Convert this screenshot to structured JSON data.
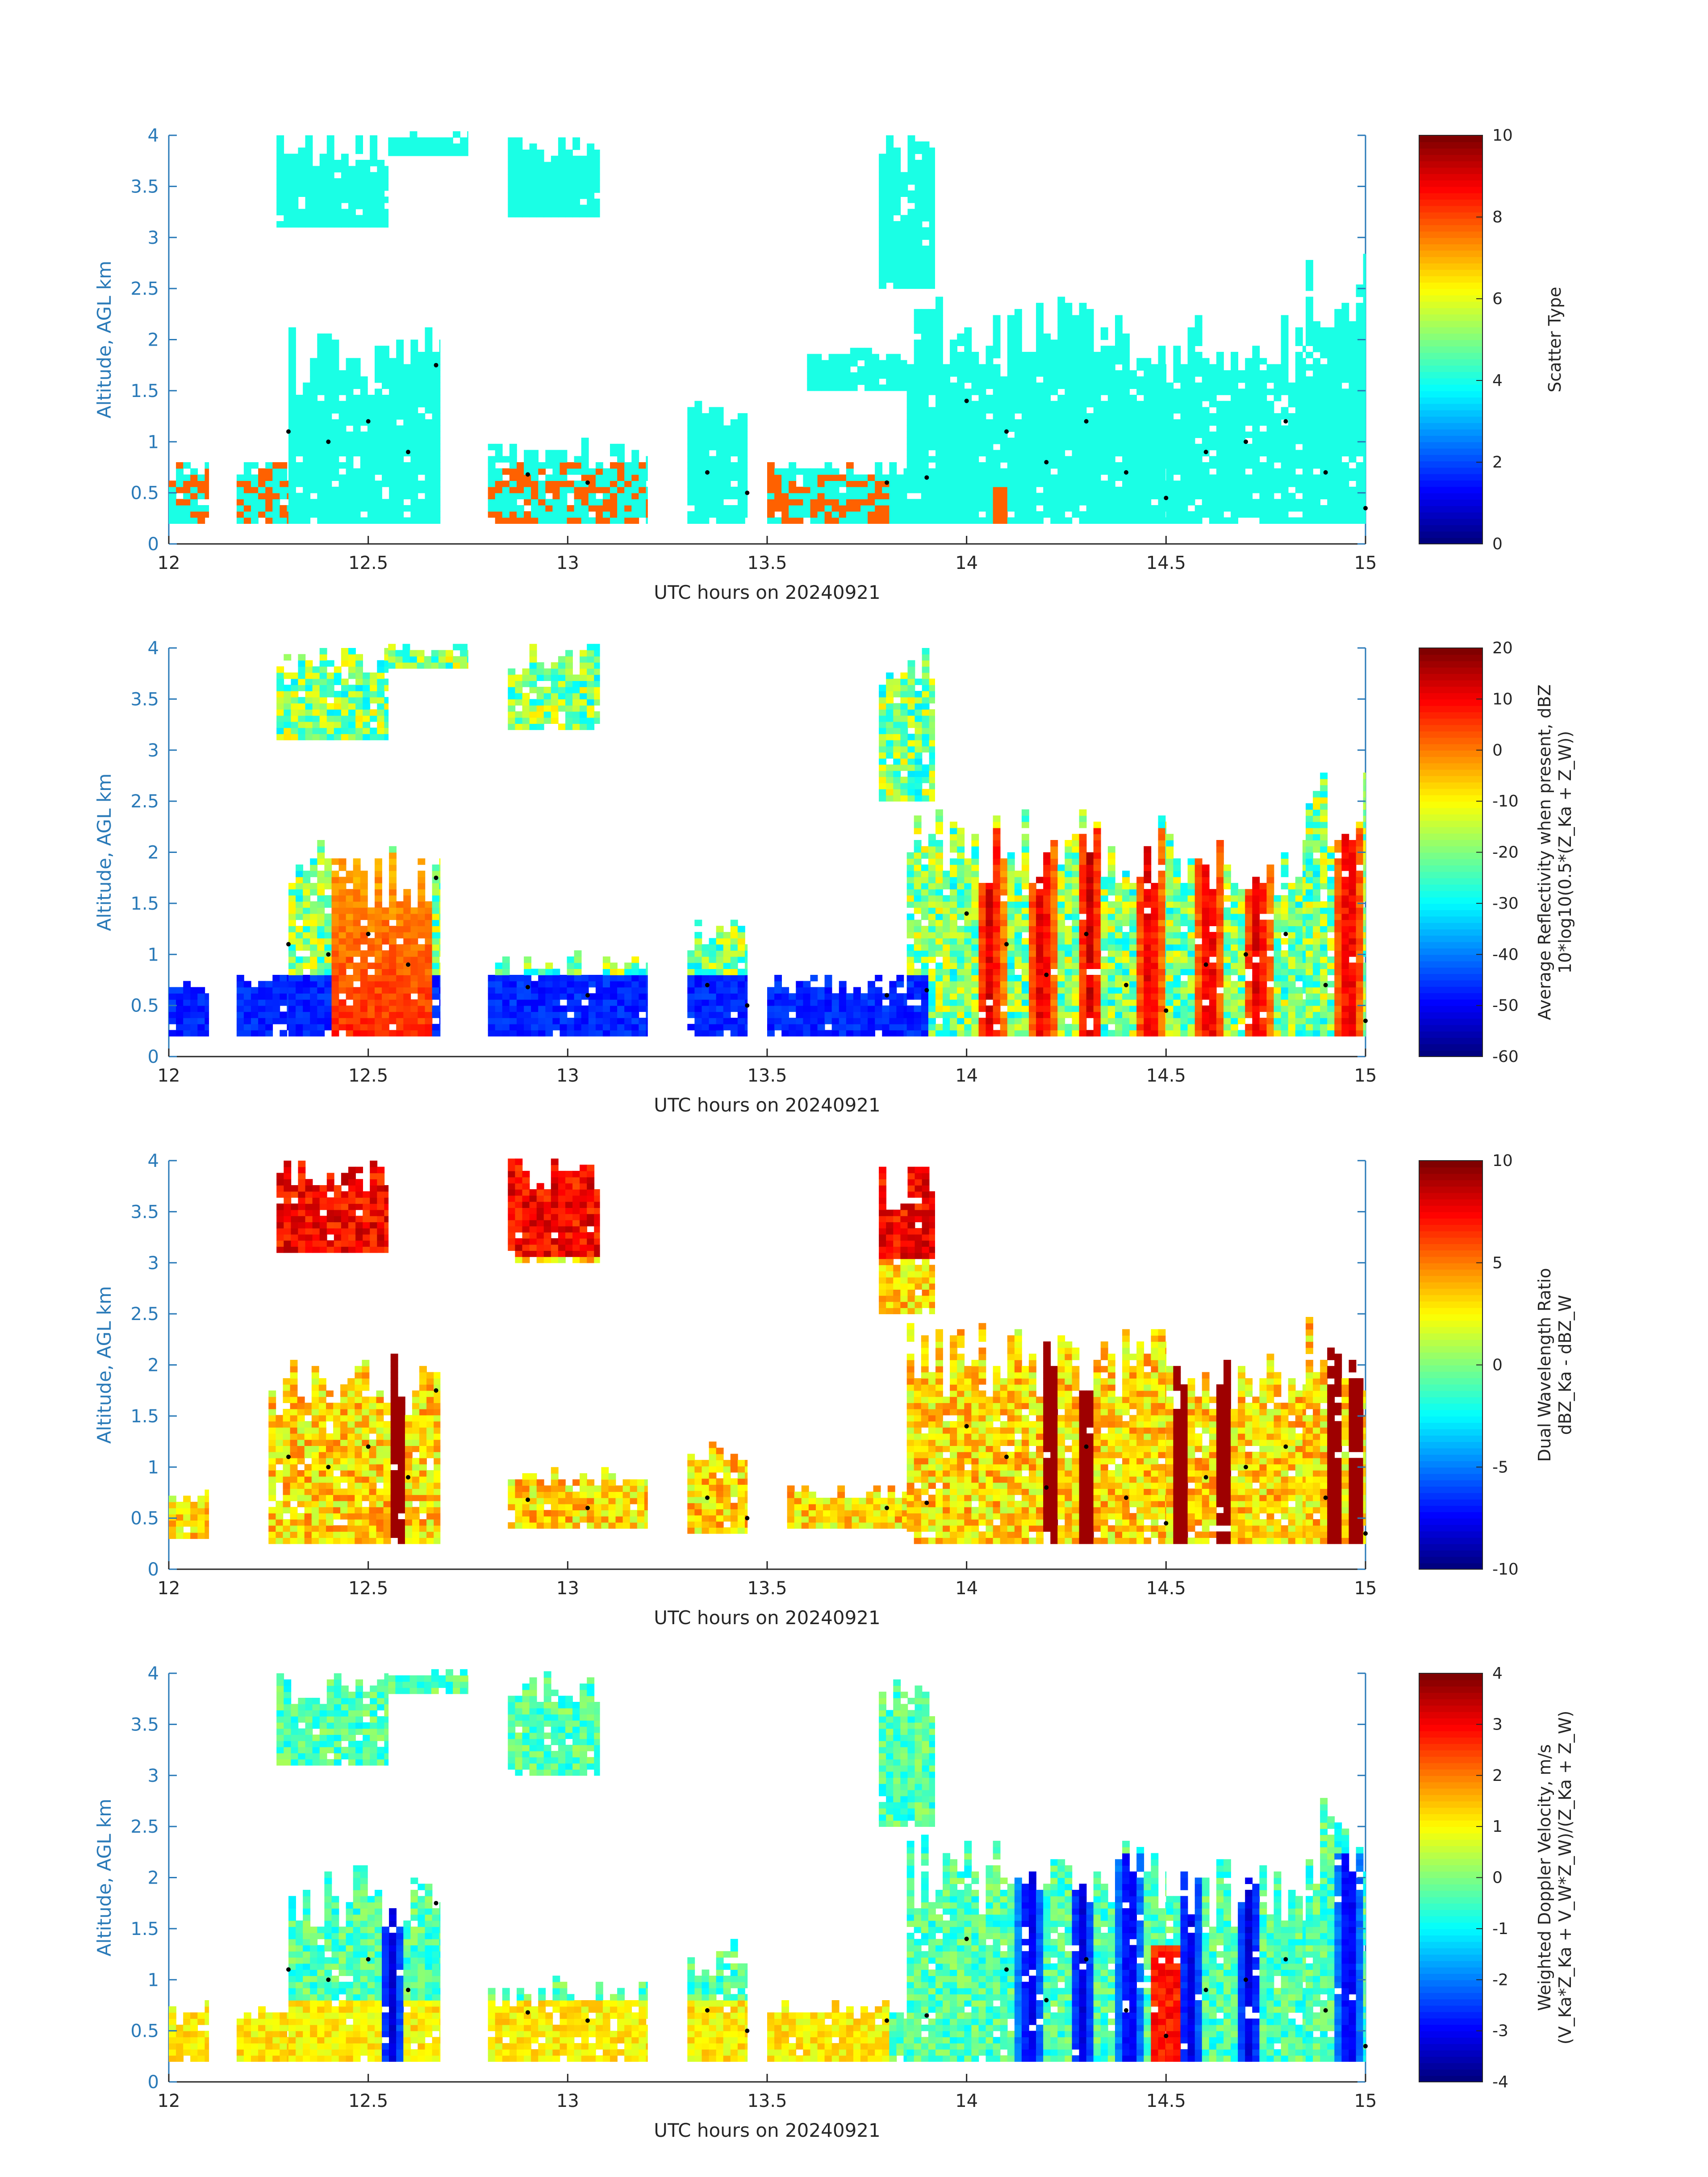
{
  "figure": {
    "panels": [
      {
        "ylabel": "Altitude, AGL km",
        "xlabel": "UTC hours on 20240921",
        "colorbar": {
          "label_lines": [
            "Scatter Type"
          ],
          "ticks": [
            "0",
            "2",
            "4",
            "6",
            "8",
            "10"
          ],
          "range": [
            0,
            10
          ]
        }
      },
      {
        "ylabel": "Altitude, AGL km",
        "xlabel": "UTC hours on 20240921",
        "colorbar": {
          "label_lines": [
            "Average Reflectivity when present, dBZ",
            "10*log10(0.5*(Z_Ka + Z_W))"
          ],
          "ticks": [
            "-60",
            "-50",
            "-40",
            "-30",
            "-20",
            "-10",
            "0",
            "10",
            "20"
          ],
          "range": [
            -60,
            20
          ]
        }
      },
      {
        "ylabel": "Altitude, AGL km",
        "xlabel": "UTC hours on 20240921",
        "colorbar": {
          "label_lines": [
            "Dual Wavelength Ratio",
            "dBZ_Ka - dBZ_W"
          ],
          "ticks": [
            "-10",
            "-5",
            "0",
            "5",
            "10"
          ],
          "range": [
            -10,
            10
          ]
        }
      },
      {
        "ylabel": "Altitude, AGL km",
        "xlabel": "UTC hours on 20240921",
        "colorbar": {
          "label_lines": [
            "Weighted Doppler Velocity, m/s",
            "(V_Ka*Z_Ka + V_W*Z_W)/(Z_Ka + Z_W)"
          ],
          "ticks": [
            "-4",
            "-3",
            "-2",
            "-1",
            "0",
            "1",
            "2",
            "3",
            "4"
          ],
          "range": [
            -4,
            4
          ]
        }
      }
    ]
  },
  "chart_data": [
    {
      "type": "heatmap",
      "xlim": [
        12,
        15
      ],
      "ylim": [
        0,
        4
      ],
      "xticks": [
        "12",
        "12.5",
        "13",
        "13.5",
        "14",
        "14.5",
        "15"
      ],
      "yticks": [
        "0",
        "0.5",
        "1",
        "1.5",
        "2",
        "2.5",
        "3",
        "3.5",
        "4"
      ],
      "xlabel": "UTC hours on 20240921",
      "ylabel": "Altitude, AGL km",
      "colormap": "jet",
      "clim": [
        0,
        10
      ],
      "quantity": "scatter_type",
      "cloud_regions": [
        {
          "x": [
            12.0,
            12.1
          ],
          "y": [
            0.2,
            0.8
          ]
        },
        {
          "x": [
            12.17,
            12.3
          ],
          "y": [
            0.2,
            0.8
          ]
        },
        {
          "x": [
            12.3,
            12.68
          ],
          "y": [
            0.2,
            2.1
          ]
        },
        {
          "x": [
            12.27,
            12.55
          ],
          "y": [
            3.1,
            4.0
          ]
        },
        {
          "x": [
            12.55,
            12.75
          ],
          "y": [
            3.8,
            4.0
          ]
        },
        {
          "x": [
            12.8,
            13.2
          ],
          "y": [
            0.2,
            1.0
          ]
        },
        {
          "x": [
            12.85,
            13.08
          ],
          "y": [
            3.2,
            4.0
          ]
        },
        {
          "x": [
            13.3,
            13.45
          ],
          "y": [
            0.2,
            1.4
          ]
        },
        {
          "x": [
            13.5,
            13.85
          ],
          "y": [
            0.2,
            0.8
          ]
        },
        {
          "x": [
            13.6,
            13.85
          ],
          "y": [
            1.5,
            1.9
          ]
        },
        {
          "x": [
            13.78,
            13.92
          ],
          "y": [
            2.5,
            4.0
          ]
        },
        {
          "x": [
            13.85,
            14.5
          ],
          "y": [
            0.2,
            2.4
          ]
        },
        {
          "x": [
            14.5,
            14.85
          ],
          "y": [
            0.2,
            2.2
          ]
        },
        {
          "x": [
            14.85,
            15.0
          ],
          "y": [
            0.2,
            2.8
          ]
        }
      ],
      "marker_line": [
        {
          "x": 12.3,
          "y": 1.1
        },
        {
          "x": 12.4,
          "y": 1.0
        },
        {
          "x": 12.5,
          "y": 1.2
        },
        {
          "x": 12.6,
          "y": 0.9
        },
        {
          "x": 12.67,
          "y": 1.75
        },
        {
          "x": 12.9,
          "y": 0.68
        },
        {
          "x": 13.05,
          "y": 0.6
        },
        {
          "x": 13.35,
          "y": 0.7
        },
        {
          "x": 13.45,
          "y": 0.5
        },
        {
          "x": 13.8,
          "y": 0.6
        },
        {
          "x": 13.9,
          "y": 0.65
        },
        {
          "x": 14.0,
          "y": 1.4
        },
        {
          "x": 14.1,
          "y": 1.1
        },
        {
          "x": 14.2,
          "y": 0.8
        },
        {
          "x": 14.3,
          "y": 1.2
        },
        {
          "x": 14.4,
          "y": 0.7
        },
        {
          "x": 14.5,
          "y": 0.45
        },
        {
          "x": 14.6,
          "y": 0.9
        },
        {
          "x": 14.7,
          "y": 1.0
        },
        {
          "x": 14.8,
          "y": 1.2
        },
        {
          "x": 14.9,
          "y": 0.7
        },
        {
          "x": 15.0,
          "y": 0.35
        }
      ]
    },
    {
      "type": "heatmap",
      "xlim": [
        12,
        15
      ],
      "ylim": [
        0,
        4
      ],
      "xticks": [
        "12",
        "12.5",
        "13",
        "13.5",
        "14",
        "14.5",
        "15"
      ],
      "yticks": [
        "0",
        "0.5",
        "1",
        "1.5",
        "2",
        "2.5",
        "3",
        "3.5",
        "4"
      ],
      "xlabel": "UTC hours on 20240921",
      "ylabel": "Altitude, AGL km",
      "colormap": "jet",
      "clim": [
        -60,
        20
      ],
      "quantity": "reflectivity_dBZ",
      "cloud_regions": [
        {
          "x": [
            12.0,
            12.1
          ],
          "y": [
            0.2,
            0.8
          ]
        },
        {
          "x": [
            12.17,
            12.3
          ],
          "y": [
            0.2,
            0.8
          ]
        },
        {
          "x": [
            12.3,
            12.68
          ],
          "y": [
            0.2,
            2.1
          ]
        },
        {
          "x": [
            12.27,
            12.55
          ],
          "y": [
            3.1,
            4.0
          ]
        },
        {
          "x": [
            12.55,
            12.75
          ],
          "y": [
            3.8,
            4.0
          ]
        },
        {
          "x": [
            12.8,
            13.2
          ],
          "y": [
            0.2,
            1.0
          ]
        },
        {
          "x": [
            12.85,
            13.08
          ],
          "y": [
            3.2,
            4.0
          ]
        },
        {
          "x": [
            13.3,
            13.45
          ],
          "y": [
            0.2,
            1.4
          ]
        },
        {
          "x": [
            13.5,
            13.85
          ],
          "y": [
            0.2,
            0.8
          ]
        },
        {
          "x": [
            13.78,
            13.92
          ],
          "y": [
            2.5,
            4.0
          ]
        },
        {
          "x": [
            13.85,
            14.5
          ],
          "y": [
            0.2,
            2.4
          ]
        },
        {
          "x": [
            14.5,
            14.85
          ],
          "y": [
            0.2,
            2.2
          ]
        },
        {
          "x": [
            14.85,
            15.0
          ],
          "y": [
            0.2,
            2.8
          ]
        }
      ],
      "marker_line": [
        {
          "x": 12.3,
          "y": 1.1
        },
        {
          "x": 12.4,
          "y": 1.0
        },
        {
          "x": 12.5,
          "y": 1.2
        },
        {
          "x": 12.6,
          "y": 0.9
        },
        {
          "x": 12.67,
          "y": 1.75
        },
        {
          "x": 12.9,
          "y": 0.68
        },
        {
          "x": 13.05,
          "y": 0.6
        },
        {
          "x": 13.35,
          "y": 0.7
        },
        {
          "x": 13.45,
          "y": 0.5
        },
        {
          "x": 13.8,
          "y": 0.6
        },
        {
          "x": 13.9,
          "y": 0.65
        },
        {
          "x": 14.0,
          "y": 1.4
        },
        {
          "x": 14.1,
          "y": 1.1
        },
        {
          "x": 14.2,
          "y": 0.8
        },
        {
          "x": 14.3,
          "y": 1.2
        },
        {
          "x": 14.4,
          "y": 0.7
        },
        {
          "x": 14.5,
          "y": 0.45
        },
        {
          "x": 14.6,
          "y": 0.9
        },
        {
          "x": 14.7,
          "y": 1.0
        },
        {
          "x": 14.8,
          "y": 1.2
        },
        {
          "x": 14.9,
          "y": 0.7
        },
        {
          "x": 15.0,
          "y": 0.35
        }
      ]
    },
    {
      "type": "heatmap",
      "xlim": [
        12,
        15
      ],
      "ylim": [
        0,
        4
      ],
      "xticks": [
        "12",
        "12.5",
        "13",
        "13.5",
        "14",
        "14.5",
        "15"
      ],
      "yticks": [
        "0",
        "0.5",
        "1",
        "1.5",
        "2",
        "2.5",
        "3",
        "3.5",
        "4"
      ],
      "xlabel": "UTC hours on 20240921",
      "ylabel": "Altitude, AGL km",
      "colormap": "jet",
      "clim": [
        -10,
        10
      ],
      "quantity": "dual_wavelength_ratio",
      "cloud_regions": [
        {
          "x": [
            12.0,
            12.1
          ],
          "y": [
            0.3,
            0.8
          ]
        },
        {
          "x": [
            12.25,
            12.68
          ],
          "y": [
            0.25,
            2.1
          ]
        },
        {
          "x": [
            12.27,
            12.55
          ],
          "y": [
            3.1,
            4.0
          ]
        },
        {
          "x": [
            12.85,
            13.2
          ],
          "y": [
            0.4,
            0.95
          ]
        },
        {
          "x": [
            12.85,
            13.08
          ],
          "y": [
            3.0,
            4.0
          ]
        },
        {
          "x": [
            13.3,
            13.45
          ],
          "y": [
            0.35,
            1.3
          ]
        },
        {
          "x": [
            13.55,
            13.85
          ],
          "y": [
            0.4,
            0.8
          ]
        },
        {
          "x": [
            13.78,
            13.92
          ],
          "y": [
            2.5,
            4.0
          ]
        },
        {
          "x": [
            13.85,
            14.5
          ],
          "y": [
            0.25,
            2.4
          ]
        },
        {
          "x": [
            14.5,
            14.85
          ],
          "y": [
            0.25,
            2.2
          ]
        },
        {
          "x": [
            14.85,
            15.0
          ],
          "y": [
            0.25,
            2.5
          ]
        }
      ],
      "marker_line": [
        {
          "x": 12.3,
          "y": 1.1
        },
        {
          "x": 12.4,
          "y": 1.0
        },
        {
          "x": 12.5,
          "y": 1.2
        },
        {
          "x": 12.6,
          "y": 0.9
        },
        {
          "x": 12.67,
          "y": 1.75
        },
        {
          "x": 12.9,
          "y": 0.68
        },
        {
          "x": 13.05,
          "y": 0.6
        },
        {
          "x": 13.35,
          "y": 0.7
        },
        {
          "x": 13.45,
          "y": 0.5
        },
        {
          "x": 13.8,
          "y": 0.6
        },
        {
          "x": 13.9,
          "y": 0.65
        },
        {
          "x": 14.0,
          "y": 1.4
        },
        {
          "x": 14.1,
          "y": 1.1
        },
        {
          "x": 14.2,
          "y": 0.8
        },
        {
          "x": 14.3,
          "y": 1.2
        },
        {
          "x": 14.4,
          "y": 0.7
        },
        {
          "x": 14.5,
          "y": 0.45
        },
        {
          "x": 14.6,
          "y": 0.9
        },
        {
          "x": 14.7,
          "y": 1.0
        },
        {
          "x": 14.8,
          "y": 1.2
        },
        {
          "x": 14.9,
          "y": 0.7
        },
        {
          "x": 15.0,
          "y": 0.35
        }
      ]
    },
    {
      "type": "heatmap",
      "xlim": [
        12,
        15
      ],
      "ylim": [
        0,
        4
      ],
      "xticks": [
        "12",
        "12.5",
        "13",
        "13.5",
        "14",
        "14.5",
        "15"
      ],
      "yticks": [
        "0",
        "0.5",
        "1",
        "1.5",
        "2",
        "2.5",
        "3",
        "3.5",
        "4"
      ],
      "xlabel": "UTC hours on 20240921",
      "ylabel": "Altitude, AGL km",
      "colormap": "jet",
      "clim": [
        -4,
        4
      ],
      "quantity": "doppler_velocity_m_per_s",
      "cloud_regions": [
        {
          "x": [
            12.0,
            12.1
          ],
          "y": [
            0.2,
            0.8
          ]
        },
        {
          "x": [
            12.17,
            12.3
          ],
          "y": [
            0.2,
            0.8
          ]
        },
        {
          "x": [
            12.3,
            12.68
          ],
          "y": [
            0.2,
            2.1
          ]
        },
        {
          "x": [
            12.27,
            12.55
          ],
          "y": [
            3.1,
            4.0
          ]
        },
        {
          "x": [
            12.55,
            12.75
          ],
          "y": [
            3.8,
            4.0
          ]
        },
        {
          "x": [
            12.8,
            13.2
          ],
          "y": [
            0.2,
            1.0
          ]
        },
        {
          "x": [
            12.85,
            13.08
          ],
          "y": [
            3.0,
            4.0
          ]
        },
        {
          "x": [
            13.3,
            13.45
          ],
          "y": [
            0.2,
            1.4
          ]
        },
        {
          "x": [
            13.5,
            13.85
          ],
          "y": [
            0.2,
            0.8
          ]
        },
        {
          "x": [
            13.78,
            13.92
          ],
          "y": [
            2.5,
            4.0
          ]
        },
        {
          "x": [
            13.85,
            14.5
          ],
          "y": [
            0.2,
            2.4
          ]
        },
        {
          "x": [
            14.5,
            14.85
          ],
          "y": [
            0.2,
            2.2
          ]
        },
        {
          "x": [
            14.85,
            15.0
          ],
          "y": [
            0.2,
            2.8
          ]
        }
      ],
      "marker_line": [
        {
          "x": 12.3,
          "y": 1.1
        },
        {
          "x": 12.4,
          "y": 1.0
        },
        {
          "x": 12.5,
          "y": 1.2
        },
        {
          "x": 12.6,
          "y": 0.9
        },
        {
          "x": 12.67,
          "y": 1.75
        },
        {
          "x": 12.9,
          "y": 0.68
        },
        {
          "x": 13.05,
          "y": 0.6
        },
        {
          "x": 13.35,
          "y": 0.7
        },
        {
          "x": 13.45,
          "y": 0.5
        },
        {
          "x": 13.8,
          "y": 0.6
        },
        {
          "x": 13.9,
          "y": 0.65
        },
        {
          "x": 14.0,
          "y": 1.4
        },
        {
          "x": 14.1,
          "y": 1.1
        },
        {
          "x": 14.2,
          "y": 0.8
        },
        {
          "x": 14.3,
          "y": 1.2
        },
        {
          "x": 14.4,
          "y": 0.7
        },
        {
          "x": 14.5,
          "y": 0.45
        },
        {
          "x": 14.6,
          "y": 0.9
        },
        {
          "x": 14.7,
          "y": 1.0
        },
        {
          "x": 14.8,
          "y": 1.2
        },
        {
          "x": 14.9,
          "y": 0.7
        },
        {
          "x": 15.0,
          "y": 0.35
        }
      ]
    }
  ]
}
